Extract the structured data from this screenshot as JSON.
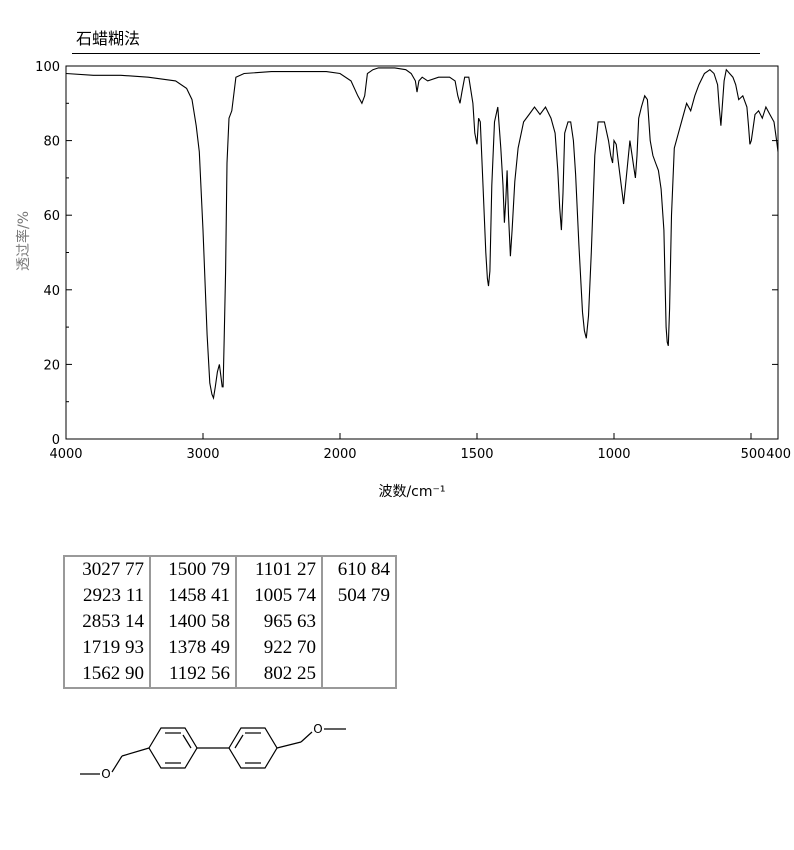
{
  "header": {
    "method": "石蜡糊法"
  },
  "chart_data": {
    "type": "line",
    "xlabel": "波数/cm⁻¹",
    "ylabel": "透过率/%",
    "xlim": [
      4000,
      400
    ],
    "ylim": [
      0,
      100
    ],
    "x_ticks": [
      "4000",
      "3000",
      "2000",
      "1500",
      "1000",
      "500",
      "400"
    ],
    "y_ticks": [
      "0",
      "20",
      "40",
      "60",
      "80",
      "100"
    ],
    "x_tick_values": [
      4000,
      3000,
      2000,
      1500,
      1000,
      500,
      400
    ],
    "y_tick_values": [
      0,
      20,
      40,
      60,
      80,
      100
    ],
    "series": [
      {
        "x": [
          4000,
          3800,
          3600,
          3400,
          3200,
          3120,
          3080,
          3050,
          3027,
          3000,
          2970,
          2950,
          2935,
          2923,
          2910,
          2895,
          2880,
          2870,
          2860,
          2853,
          2845,
          2835,
          2825,
          2810,
          2790,
          2760,
          2700,
          2500,
          2300,
          2100,
          2000,
          1960,
          1935,
          1920,
          1910,
          1900,
          1880,
          1860,
          1800,
          1760,
          1740,
          1725,
          1719,
          1712,
          1700,
          1680,
          1640,
          1600,
          1580,
          1570,
          1562,
          1555,
          1545,
          1530,
          1515,
          1508,
          1500,
          1494,
          1488,
          1478,
          1468,
          1462,
          1458,
          1453,
          1446,
          1436,
          1424,
          1413,
          1405,
          1400,
          1395,
          1390,
          1385,
          1380,
          1378,
          1372,
          1362,
          1350,
          1330,
          1310,
          1290,
          1270,
          1250,
          1230,
          1215,
          1205,
          1198,
          1192,
          1186,
          1180,
          1168,
          1158,
          1148,
          1140,
          1128,
          1115,
          1108,
          1101,
          1093,
          1083,
          1070,
          1058,
          1045,
          1035,
          1020,
          1012,
          1005,
          1000,
          992,
          982,
          972,
          965,
          958,
          950,
          942,
          934,
          928,
          922,
          916,
          910,
          900,
          888,
          878,
          868,
          858,
          848,
          838,
          828,
          818,
          810,
          806,
          802,
          797,
          790,
          780,
          765,
          750,
          735,
          720,
          705,
          690,
          670,
          650,
          635,
          622,
          616,
          610,
          604,
          598,
          590,
          578,
          566,
          556,
          545,
          530,
          515,
          509,
          504,
          499,
          493,
          485,
          472,
          458,
          445,
          430,
          415,
          405,
          400
        ],
        "y": [
          98,
          97.5,
          97.5,
          97,
          96,
          94,
          91,
          84,
          77,
          56,
          28,
          15,
          12,
          11,
          14,
          18,
          20,
          17,
          14,
          14,
          27,
          45,
          74,
          86,
          88,
          97,
          98,
          98.5,
          98.5,
          98.5,
          98,
          96,
          92,
          90,
          92,
          98,
          99,
          99.5,
          99.5,
          99,
          98,
          96,
          93,
          96,
          97,
          96,
          97,
          97,
          96,
          92,
          90,
          93,
          97,
          97,
          90,
          82,
          79,
          86,
          85,
          68,
          50,
          43,
          41,
          45,
          68,
          85,
          89,
          78,
          68,
          58,
          64,
          72,
          60,
          52,
          49,
          56,
          69,
          78,
          85,
          87,
          89,
          87,
          89,
          86,
          82,
          72,
          62,
          56,
          66,
          82,
          85,
          85,
          80,
          71,
          52,
          34,
          29,
          27,
          33,
          50,
          76,
          85,
          85,
          85,
          80,
          76,
          74,
          80,
          79,
          73,
          67,
          63,
          68,
          74,
          80,
          76,
          73,
          70,
          76,
          86,
          89,
          92,
          91,
          80,
          76,
          74,
          72,
          67,
          56,
          30,
          26,
          25,
          35,
          60,
          78,
          82,
          86,
          90,
          88,
          92,
          95,
          98,
          99,
          98,
          95,
          89,
          84,
          90,
          96,
          99,
          98,
          97,
          95,
          91,
          92,
          89,
          84,
          79,
          80,
          83,
          87,
          88,
          86,
          89,
          87,
          85,
          80,
          77
        ]
      }
    ]
  },
  "peaks": {
    "columns": [
      [
        "3027 77",
        "2923 11",
        "2853 14",
        "1719 93",
        "1562 90"
      ],
      [
        "1500 79",
        "1458 41",
        "1400 58",
        "1378 49",
        "1192 56"
      ],
      [
        "1101 27",
        "1005 74",
        "965 63",
        "922 70",
        "802 25"
      ],
      [
        "610 84",
        "504 79"
      ]
    ]
  },
  "structure": {
    "atom_labels": [
      "O",
      "O"
    ]
  }
}
